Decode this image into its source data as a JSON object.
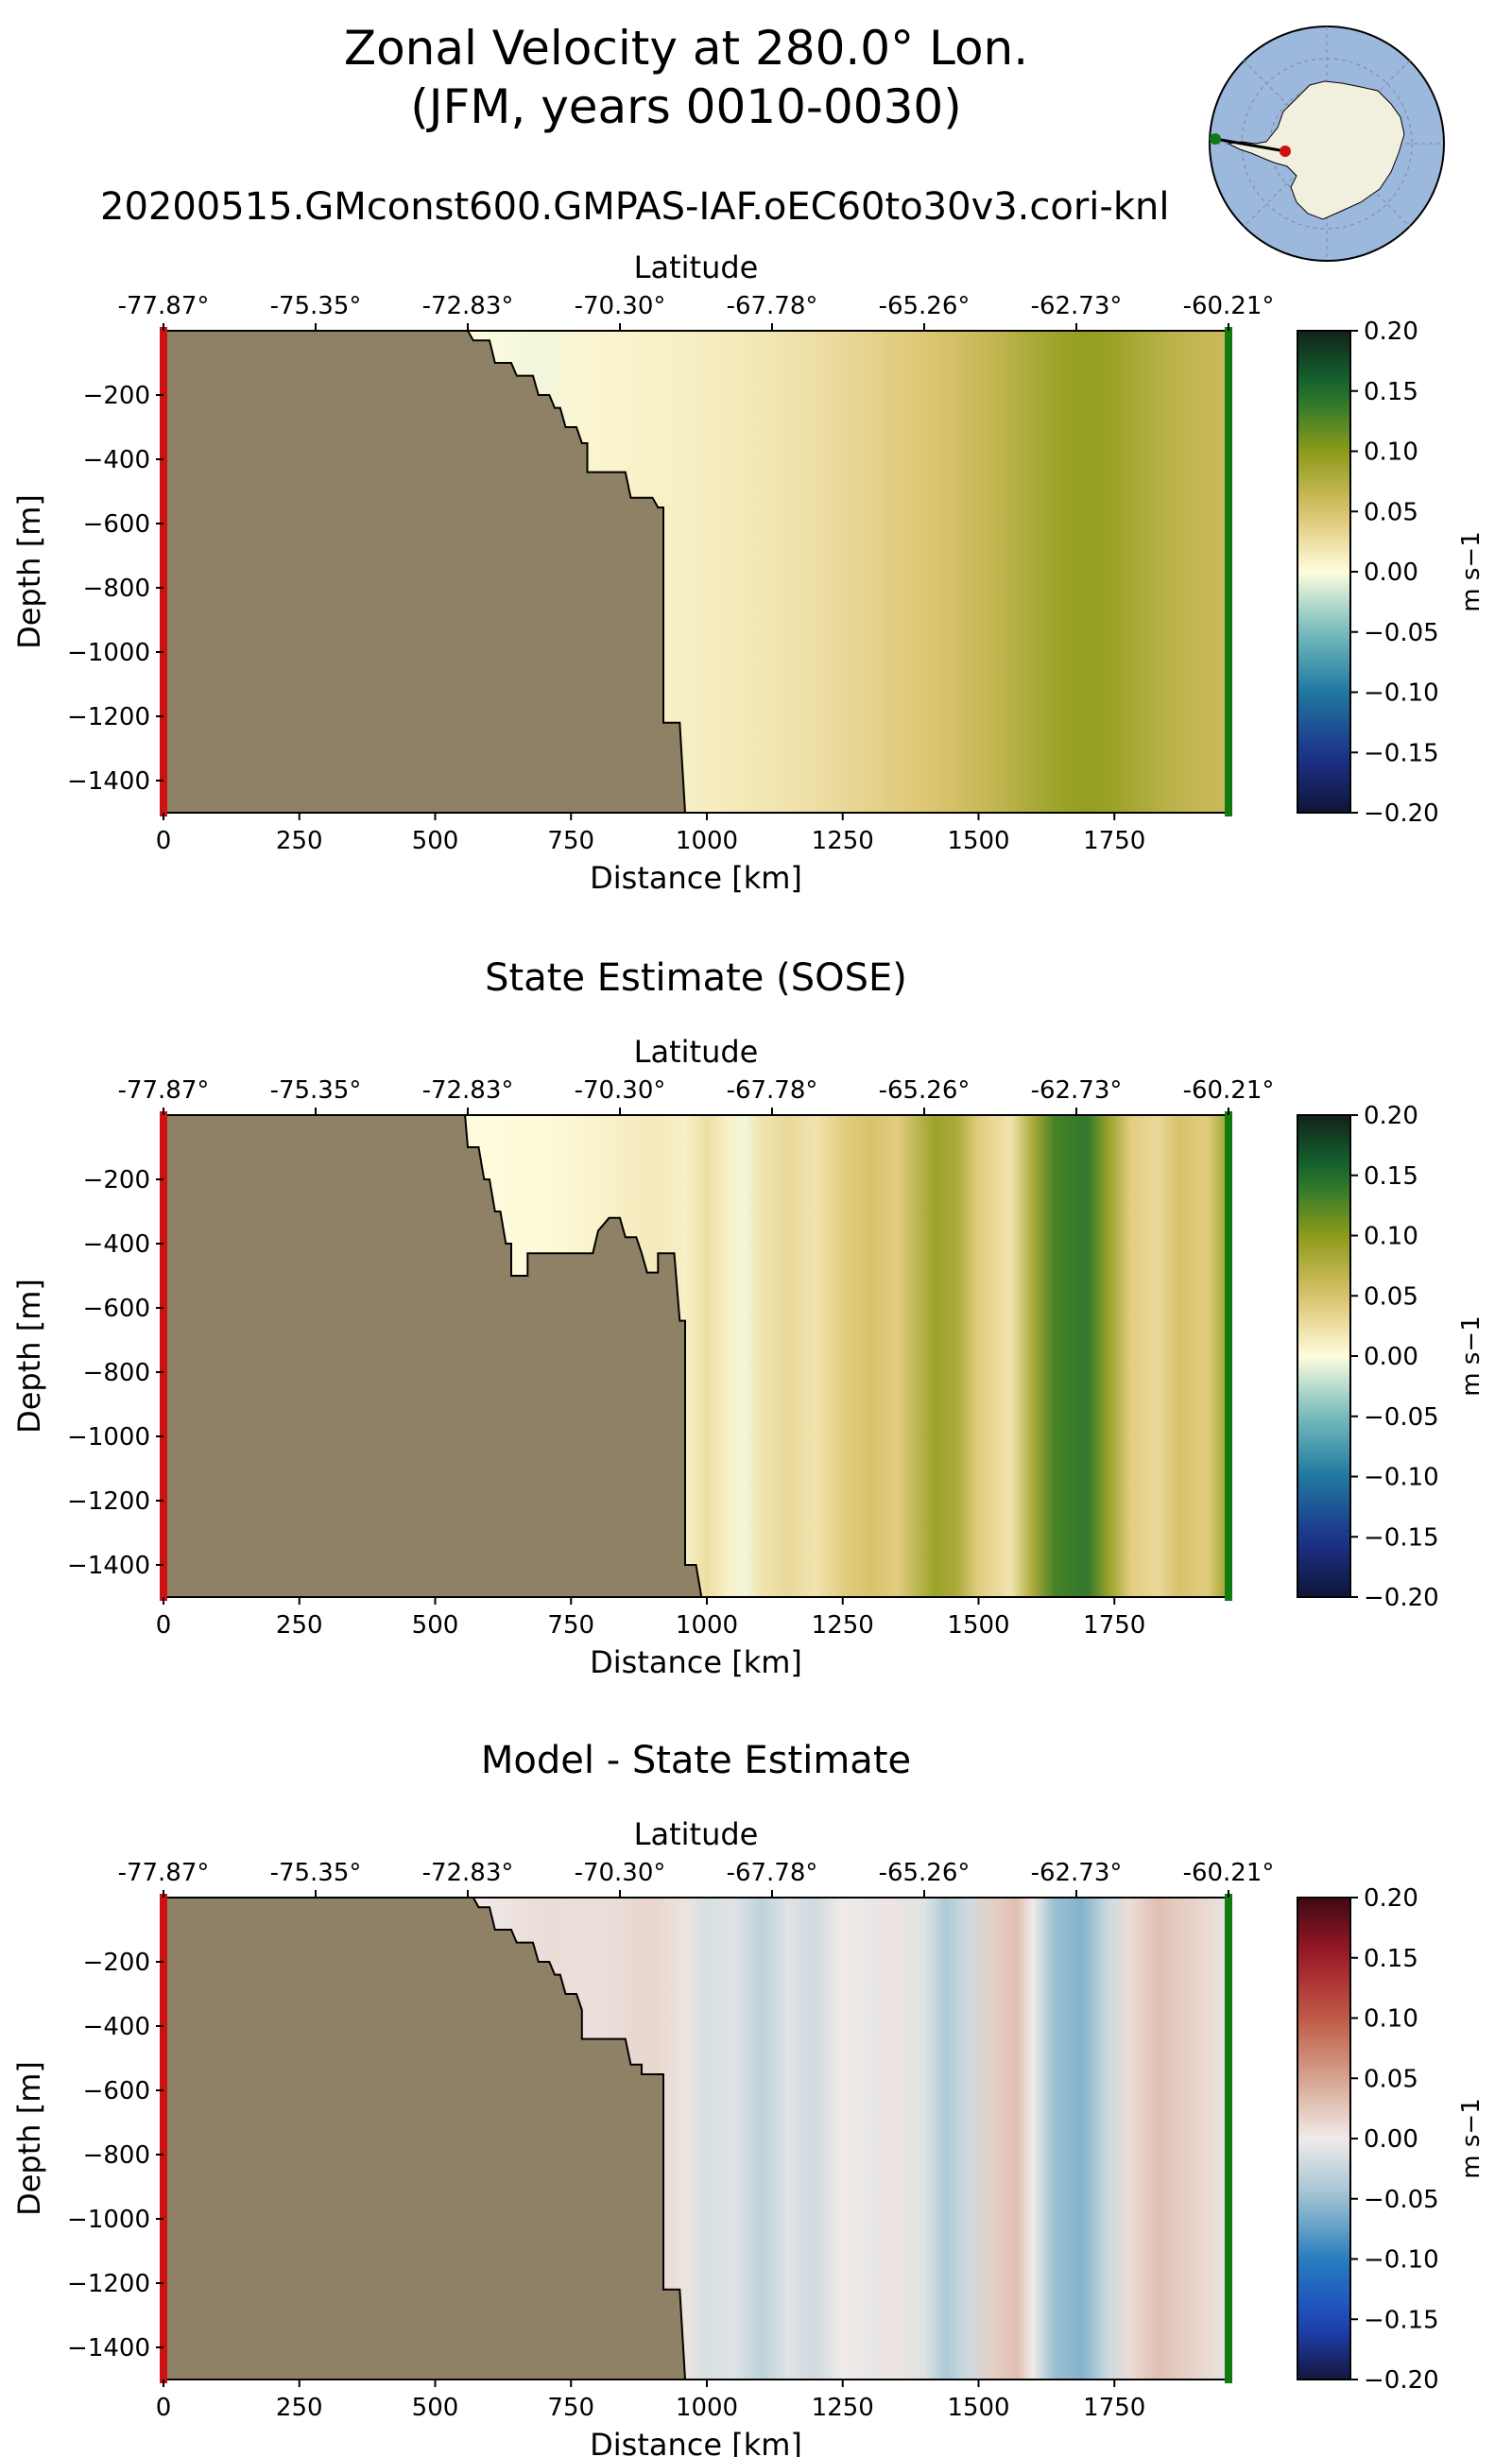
{
  "figure": {
    "title_line1": "Zonal Velocity at 280.0° Lon.",
    "title_line2": "(JFM, years 0010-0030)",
    "run_name": "20200515.GMconst600.GMPAS-IAF.oEC60to30v3.cori-knl"
  },
  "colors": {
    "land": "#8e8166",
    "left_marker": "#cc1111",
    "right_marker": "#117a11",
    "ocean_map": "#9cb8dc",
    "antarctica": "#f1efde"
  },
  "chart_data": [
    {
      "type": "heatmap",
      "title": "",
      "xlabel": "Distance [km]",
      "ylabel": "Depth [m]",
      "top_axis_label": "Latitude",
      "top_ticks": [
        "-77.87°",
        "-75.35°",
        "-72.83°",
        "-70.30°",
        "-67.78°",
        "-65.26°",
        "-62.73°",
        "-60.21°"
      ],
      "x_ticks": [
        "0",
        "250",
        "500",
        "750",
        "1000",
        "1250",
        "1500",
        "1750"
      ],
      "y_ticks": [
        "−200",
        "−400",
        "−600",
        "−800",
        "−1000",
        "−1200",
        "−1400"
      ],
      "xlim": [
        0,
        1960
      ],
      "ylim": [
        -1500,
        0
      ],
      "colorbar": {
        "label": "m s−1",
        "cmap": "delta",
        "range": [
          -0.2,
          0.2
        ],
        "ticks": [
          "0.20",
          "0.15",
          "0.10",
          "0.05",
          "0.00",
          "−0.05",
          "−0.10",
          "−0.15",
          "−0.20"
        ]
      },
      "bathymetry": [
        [
          0,
          0
        ],
        [
          560,
          0
        ],
        [
          570,
          -30
        ],
        [
          600,
          -30
        ],
        [
          610,
          -100
        ],
        [
          640,
          -100
        ],
        [
          650,
          -140
        ],
        [
          680,
          -140
        ],
        [
          690,
          -200
        ],
        [
          710,
          -200
        ],
        [
          720,
          -240
        ],
        [
          730,
          -240
        ],
        [
          740,
          -300
        ],
        [
          760,
          -300
        ],
        [
          770,
          -350
        ],
        [
          780,
          -350
        ],
        [
          780,
          -440
        ],
        [
          850,
          -440
        ],
        [
          860,
          -520
        ],
        [
          900,
          -520
        ],
        [
          910,
          -550
        ],
        [
          920,
          -550
        ],
        [
          920,
          -1220
        ],
        [
          950,
          -1220
        ],
        [
          960,
          -1500
        ]
      ],
      "field_profile": [
        [
          560,
          0.0
        ],
        [
          700,
          -0.005
        ],
        [
          760,
          0.005
        ],
        [
          900,
          0.01
        ],
        [
          1000,
          0.012
        ],
        [
          1100,
          0.018
        ],
        [
          1200,
          0.025
        ],
        [
          1300,
          0.035
        ],
        [
          1400,
          0.045
        ],
        [
          1500,
          0.06
        ],
        [
          1600,
          0.08
        ],
        [
          1650,
          0.09
        ],
        [
          1700,
          0.095
        ],
        [
          1750,
          0.09
        ],
        [
          1800,
          0.08
        ],
        [
          1850,
          0.07
        ],
        [
          1900,
          0.065
        ],
        [
          1960,
          0.06
        ]
      ]
    },
    {
      "type": "heatmap",
      "title": "State Estimate (SOSE)",
      "xlabel": "Distance [km]",
      "ylabel": "Depth [m]",
      "top_axis_label": "Latitude",
      "top_ticks": [
        "-77.87°",
        "-75.35°",
        "-72.83°",
        "-70.30°",
        "-67.78°",
        "-65.26°",
        "-62.73°",
        "-60.21°"
      ],
      "x_ticks": [
        "0",
        "250",
        "500",
        "750",
        "1000",
        "1250",
        "1500",
        "1750"
      ],
      "y_ticks": [
        "−200",
        "−400",
        "−600",
        "−800",
        "−1000",
        "−1200",
        "−1400"
      ],
      "xlim": [
        0,
        1960
      ],
      "ylim": [
        -1500,
        0
      ],
      "colorbar": {
        "label": "m s−1",
        "cmap": "delta",
        "range": [
          -0.2,
          0.2
        ],
        "ticks": [
          "0.20",
          "0.15",
          "0.10",
          "0.05",
          "0.00",
          "−0.05",
          "−0.10",
          "−0.15",
          "−0.20"
        ]
      },
      "bathymetry": [
        [
          0,
          0
        ],
        [
          555,
          0
        ],
        [
          560,
          -100
        ],
        [
          580,
          -100
        ],
        [
          590,
          -200
        ],
        [
          600,
          -200
        ],
        [
          610,
          -300
        ],
        [
          620,
          -300
        ],
        [
          630,
          -400
        ],
        [
          640,
          -400
        ],
        [
          640,
          -500
        ],
        [
          670,
          -500
        ],
        [
          670,
          -430
        ],
        [
          790,
          -430
        ],
        [
          800,
          -360
        ],
        [
          820,
          -320
        ],
        [
          840,
          -320
        ],
        [
          850,
          -380
        ],
        [
          870,
          -380
        ],
        [
          880,
          -430
        ],
        [
          890,
          -490
        ],
        [
          910,
          -490
        ],
        [
          910,
          -430
        ],
        [
          940,
          -430
        ],
        [
          950,
          -640
        ],
        [
          960,
          -640
        ],
        [
          960,
          -1400
        ],
        [
          980,
          -1400
        ],
        [
          990,
          -1500
        ]
      ],
      "field_profile": [
        [
          555,
          0.0
        ],
        [
          700,
          0.002
        ],
        [
          800,
          0.008
        ],
        [
          900,
          0.015
        ],
        [
          960,
          0.01
        ],
        [
          1000,
          0.025
        ],
        [
          1040,
          0.01
        ],
        [
          1070,
          -0.005
        ],
        [
          1100,
          0.02
        ],
        [
          1150,
          0.03
        ],
        [
          1200,
          0.02
        ],
        [
          1250,
          0.04
        ],
        [
          1300,
          0.05
        ],
        [
          1350,
          0.04
        ],
        [
          1420,
          0.09
        ],
        [
          1460,
          0.08
        ],
        [
          1500,
          0.04
        ],
        [
          1560,
          0.02
        ],
        [
          1600,
          0.08
        ],
        [
          1640,
          0.13
        ],
        [
          1700,
          0.14
        ],
        [
          1740,
          0.09
        ],
        [
          1780,
          0.04
        ],
        [
          1830,
          0.03
        ],
        [
          1870,
          0.05
        ],
        [
          1920,
          0.04
        ],
        [
          1960,
          0.09
        ]
      ]
    },
    {
      "type": "heatmap",
      "title": "Model - State Estimate",
      "xlabel": "Distance [km]",
      "ylabel": "Depth [m]",
      "top_axis_label": "Latitude",
      "top_ticks": [
        "-77.87°",
        "-75.35°",
        "-72.83°",
        "-70.30°",
        "-67.78°",
        "-65.26°",
        "-62.73°",
        "-60.21°"
      ],
      "x_ticks": [
        "0",
        "250",
        "500",
        "750",
        "1000",
        "1250",
        "1500",
        "1750"
      ],
      "y_ticks": [
        "−200",
        "−400",
        "−600",
        "−800",
        "−1000",
        "−1200",
        "−1400"
      ],
      "xlim": [
        0,
        1960
      ],
      "ylim": [
        -1500,
        0
      ],
      "colorbar": {
        "label": "m s−1",
        "cmap": "balance",
        "range": [
          -0.2,
          0.2
        ],
        "ticks": [
          "0.20",
          "0.15",
          "0.10",
          "0.05",
          "0.00",
          "−0.05",
          "−0.10",
          "−0.15",
          "−0.20"
        ]
      },
      "bathymetry": [
        [
          0,
          0
        ],
        [
          570,
          0
        ],
        [
          580,
          -30
        ],
        [
          600,
          -30
        ],
        [
          610,
          -100
        ],
        [
          640,
          -100
        ],
        [
          650,
          -140
        ],
        [
          680,
          -140
        ],
        [
          690,
          -200
        ],
        [
          710,
          -200
        ],
        [
          720,
          -240
        ],
        [
          730,
          -240
        ],
        [
          740,
          -300
        ],
        [
          760,
          -300
        ],
        [
          770,
          -350
        ],
        [
          770,
          -440
        ],
        [
          850,
          -440
        ],
        [
          860,
          -520
        ],
        [
          880,
          -520
        ],
        [
          880,
          -550
        ],
        [
          920,
          -550
        ],
        [
          920,
          -1220
        ],
        [
          950,
          -1220
        ],
        [
          960,
          -1500
        ]
      ],
      "field_profile": [
        [
          570,
          0.0
        ],
        [
          700,
          0.01
        ],
        [
          800,
          0.008
        ],
        [
          900,
          0.015
        ],
        [
          960,
          0.005
        ],
        [
          1000,
          -0.015
        ],
        [
          1050,
          -0.01
        ],
        [
          1100,
          -0.03
        ],
        [
          1150,
          -0.01
        ],
        [
          1200,
          -0.02
        ],
        [
          1250,
          0.0
        ],
        [
          1300,
          -0.005
        ],
        [
          1350,
          0.005
        ],
        [
          1400,
          -0.01
        ],
        [
          1440,
          -0.04
        ],
        [
          1480,
          -0.02
        ],
        [
          1530,
          0.02
        ],
        [
          1570,
          0.03
        ],
        [
          1600,
          0.0
        ],
        [
          1640,
          -0.05
        ],
        [
          1690,
          -0.06
        ],
        [
          1740,
          -0.02
        ],
        [
          1780,
          0.01
        ],
        [
          1830,
          0.03
        ],
        [
          1880,
          0.02
        ],
        [
          1930,
          0.01
        ],
        [
          1960,
          -0.01
        ]
      ]
    }
  ]
}
